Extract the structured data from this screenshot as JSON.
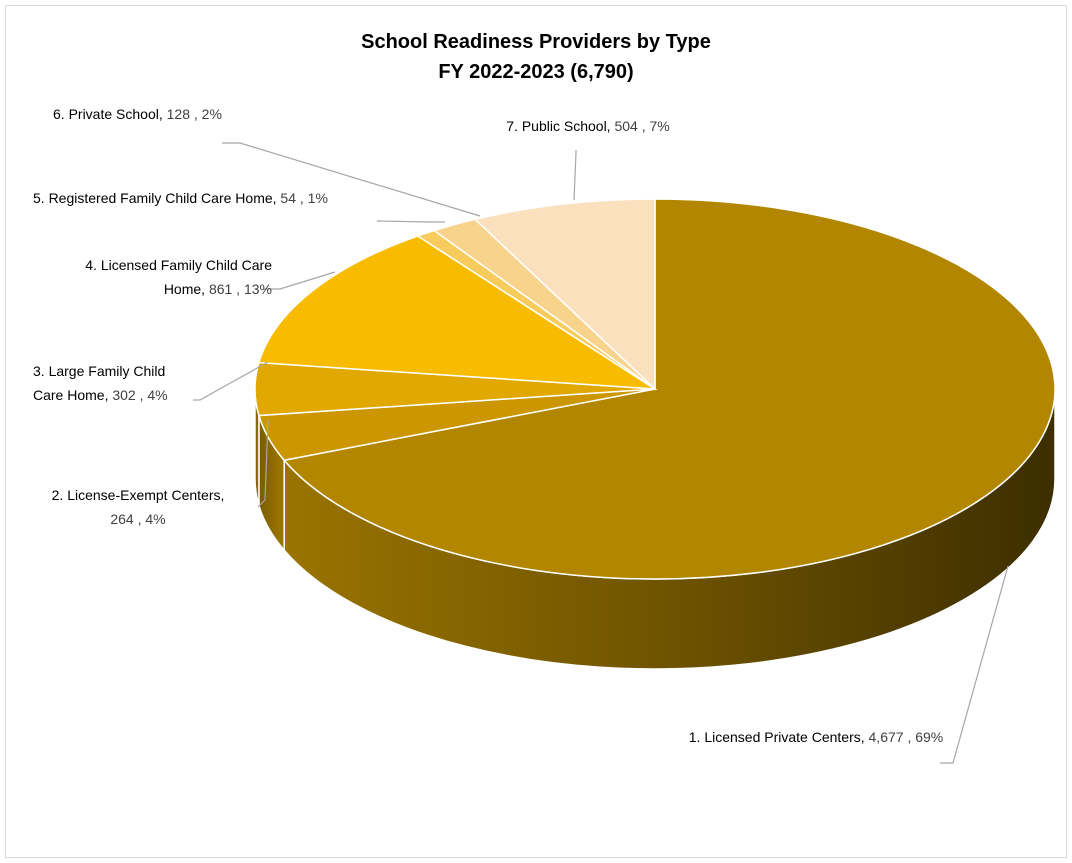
{
  "chart_data": {
    "type": "pie",
    "title": "School Readiness Providers by Type",
    "subtitle": "FY 2022-2023 (6,790)",
    "total": 6790,
    "slices": [
      {
        "name": "1. Licensed Private Centers",
        "value": 4677,
        "value_text": "4,677",
        "percent": "69%",
        "color": "#b38600"
      },
      {
        "name": "2. License-Exempt Centers",
        "value": 264,
        "value_text": "264",
        "percent": "4%",
        "color": "#cc9600"
      },
      {
        "name": "3. Large Family Child Care Home",
        "value": 302,
        "value_text": "302",
        "percent": "4%",
        "color": "#e0a800"
      },
      {
        "name": "4. Licensed Family Child Care Home",
        "value": 861,
        "value_text": "861",
        "percent": "13%",
        "color": "#f7bc00"
      },
      {
        "name": "5. Registered Family Child Care Home",
        "value": 54,
        "value_text": "54",
        "percent": "1%",
        "color": "#f7cc5c"
      },
      {
        "name": "6. Private School",
        "value": 128,
        "value_text": "128",
        "percent": "2%",
        "color": "#f8d38b"
      },
      {
        "name": "7. Public School",
        "value": 504,
        "value_text": "504",
        "percent": "7%",
        "color": "#fae0bd"
      }
    ],
    "legend": "none",
    "style": "3d-pie"
  }
}
